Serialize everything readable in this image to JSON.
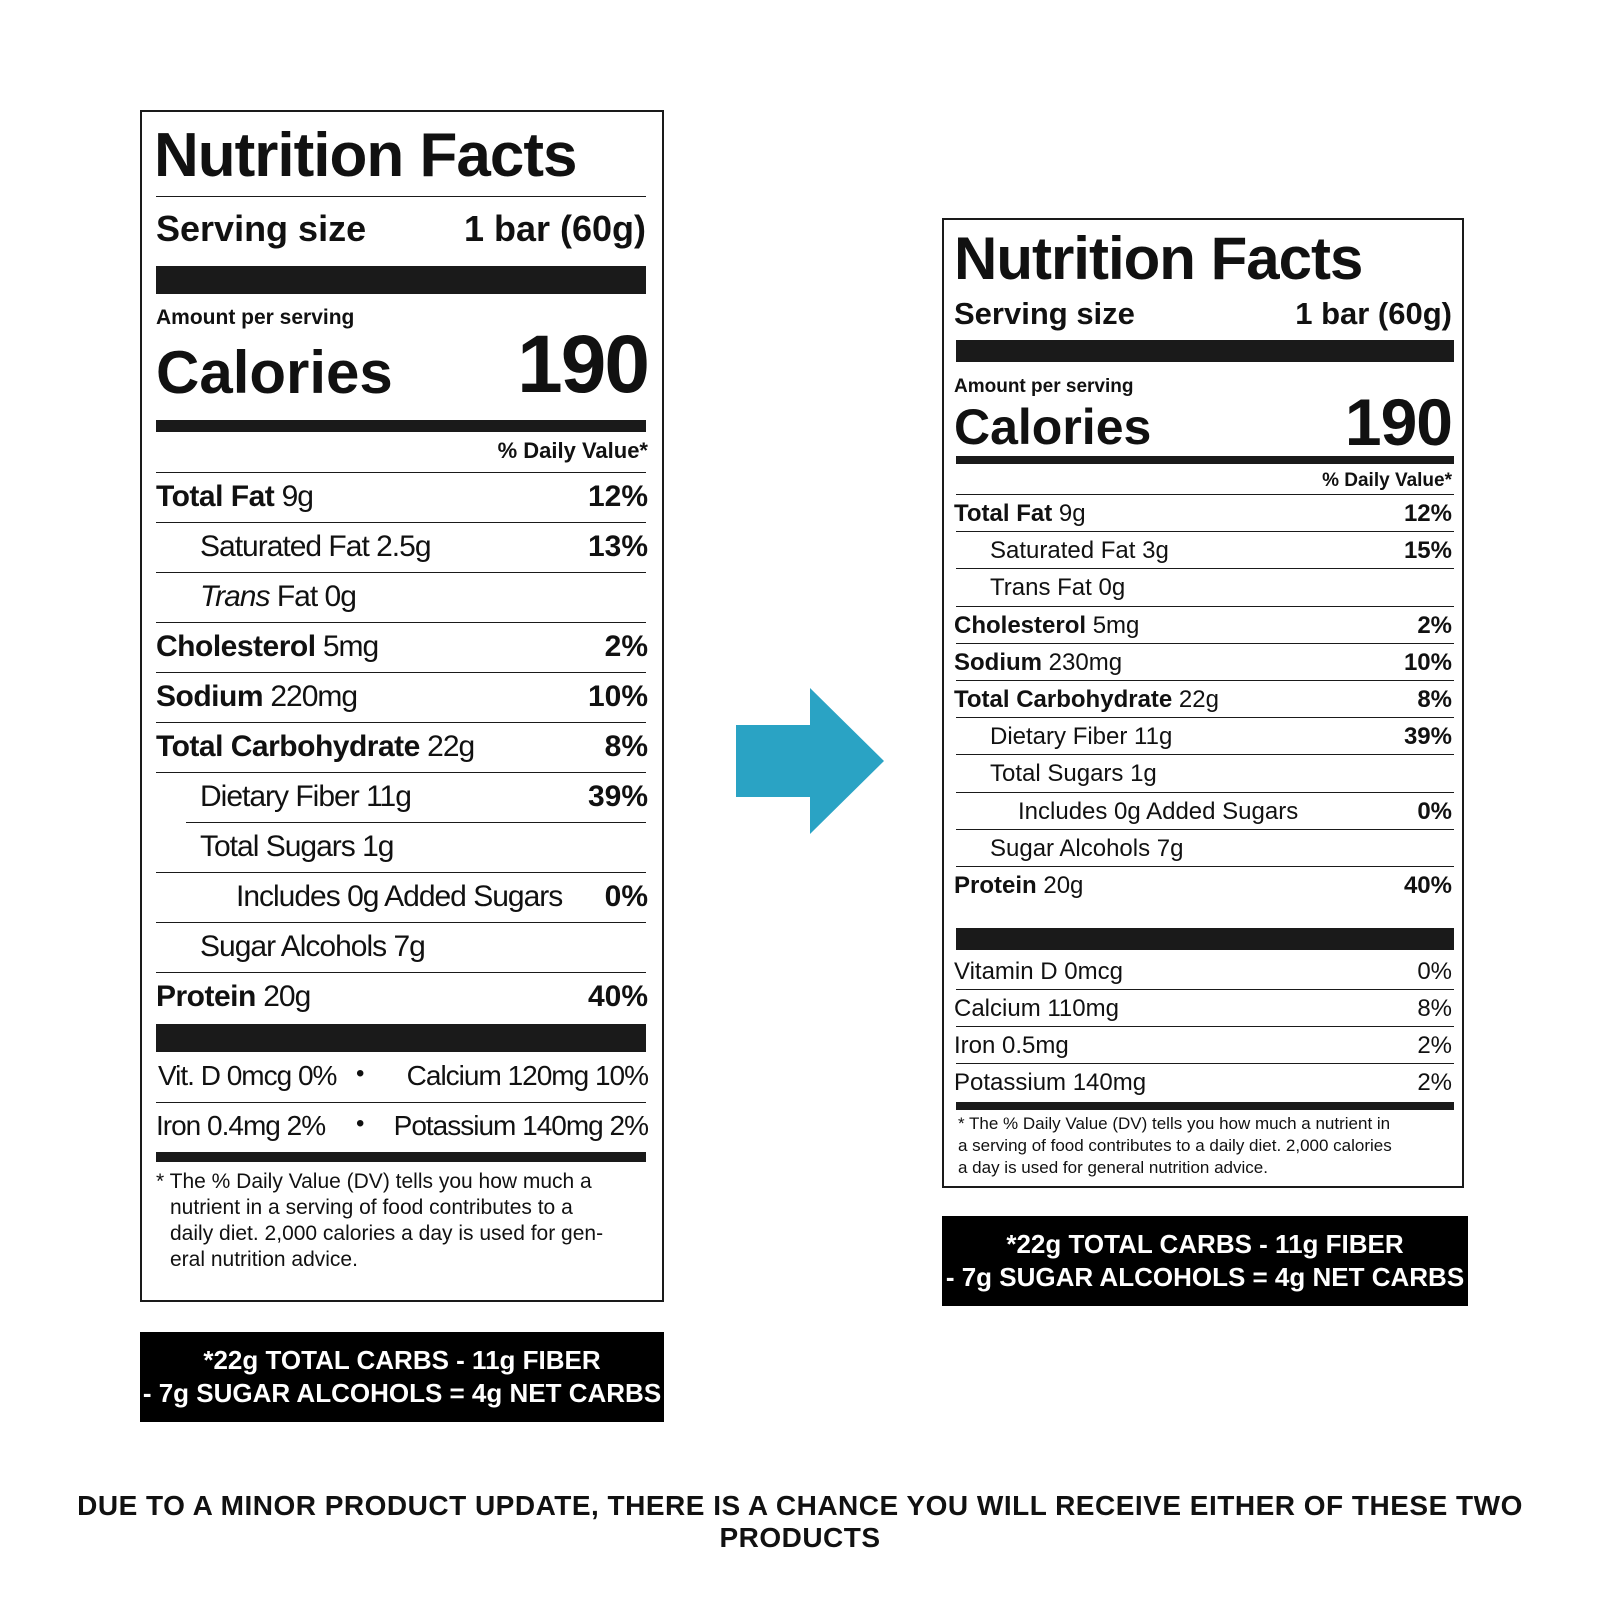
{
  "old_label": {
    "title": "Nutrition Facts",
    "serving_label": "Serving size",
    "serving_value": "1 bar (60g)",
    "amount_per_serving": "Amount per serving",
    "calories_label": "Calories",
    "calories_value": "190",
    "daily_value_header": "% Daily Value*",
    "rows": [
      {
        "name": "Total Fat",
        "amount": "9g",
        "dv": "12%"
      },
      {
        "name": "Saturated Fat",
        "amount": "2.5g",
        "dv": "13%"
      },
      {
        "name": "Trans",
        "name2": "Fat",
        "amount": "0g",
        "dv": ""
      },
      {
        "name": "Cholesterol",
        "amount": "5mg",
        "dv": "2%"
      },
      {
        "name": "Sodium",
        "amount": "220mg",
        "dv": "10%"
      },
      {
        "name": "Total Carbohydrate",
        "amount": "22g",
        "dv": "8%"
      },
      {
        "name": "Dietary Fiber",
        "amount": "11g",
        "dv": "39%"
      },
      {
        "name": "Total Sugars",
        "amount": "1g",
        "dv": ""
      },
      {
        "name": "Includes 0g Added Sugars",
        "amount": "",
        "dv": "0%"
      },
      {
        "name": "Sugar Alcohols",
        "amount": "7g",
        "dv": ""
      },
      {
        "name": "Protein",
        "amount": "20g",
        "dv": "40%"
      }
    ],
    "micros_line1_left": "Vit. D 0mcg 0%",
    "micros_line1_right": "Calcium 120mg 10%",
    "micros_line2_left": "Iron 0.4mg 2%",
    "micros_line2_right": "Potassium 140mg 2%",
    "bullet": "•",
    "footnote_lines": [
      "* The % Daily Value (DV) tells you how much a",
      "nutrient in a serving of food contributes to a",
      "daily diet. 2,000 calories a day is used for gen-",
      "eral nutrition advice."
    ],
    "net_carbs_line1": "*22g TOTAL CARBS - 11g FIBER",
    "net_carbs_line2": "- 7g SUGAR ALCOHOLS = 4g NET CARBS"
  },
  "new_label": {
    "title": "Nutrition Facts",
    "serving_label": "Serving size",
    "serving_value": "1 bar (60g)",
    "amount_per_serving": "Amount per serving",
    "calories_label": "Calories",
    "calories_value": "190",
    "daily_value_header": "% Daily Value*",
    "rows": [
      {
        "name": "Total Fat",
        "amount": "9g",
        "dv": "12%"
      },
      {
        "name": "Saturated Fat",
        "amount": "3g",
        "dv": "15%"
      },
      {
        "name": "Trans Fat",
        "amount": "0g",
        "dv": ""
      },
      {
        "name": "Cholesterol",
        "amount": "5mg",
        "dv": "2%"
      },
      {
        "name": "Sodium",
        "amount": "230mg",
        "dv": "10%"
      },
      {
        "name": "Total Carbohydrate",
        "amount": "22g",
        "dv": "8%"
      },
      {
        "name": "Dietary Fiber",
        "amount": "11g",
        "dv": "39%"
      },
      {
        "name": "Total Sugars",
        "amount": "1g",
        "dv": ""
      },
      {
        "name": "Includes 0g Added Sugars",
        "amount": "",
        "dv": "0%"
      },
      {
        "name": "Sugar Alcohols",
        "amount": "7g",
        "dv": ""
      },
      {
        "name": "Protein",
        "amount": "20g",
        "dv": "40%"
      }
    ],
    "micros": [
      {
        "name": "Vitamin D 0mcg",
        "dv": "0%"
      },
      {
        "name": "Calcium 110mg",
        "dv": "8%"
      },
      {
        "name": "Iron 0.5mg",
        "dv": "2%"
      },
      {
        "name": "Potassium 140mg",
        "dv": "2%"
      }
    ],
    "footnote_lines": [
      "* The % Daily Value (DV) tells you how much a nutrient in",
      "a serving of food contributes to a daily diet. 2,000 calories",
      "a day is used for general nutrition advice."
    ],
    "net_carbs_line1": "*22g TOTAL CARBS - 11g FIBER",
    "net_carbs_line2": "- 7g SUGAR ALCOHOLS = 4g NET CARBS"
  },
  "arrow_color": "#2aa3c4",
  "footer_notice": "DUE TO A MINOR PRODUCT UPDATE, THERE IS A CHANCE YOU WILL RECEIVE EITHER OF THESE TWO PRODUCTS"
}
